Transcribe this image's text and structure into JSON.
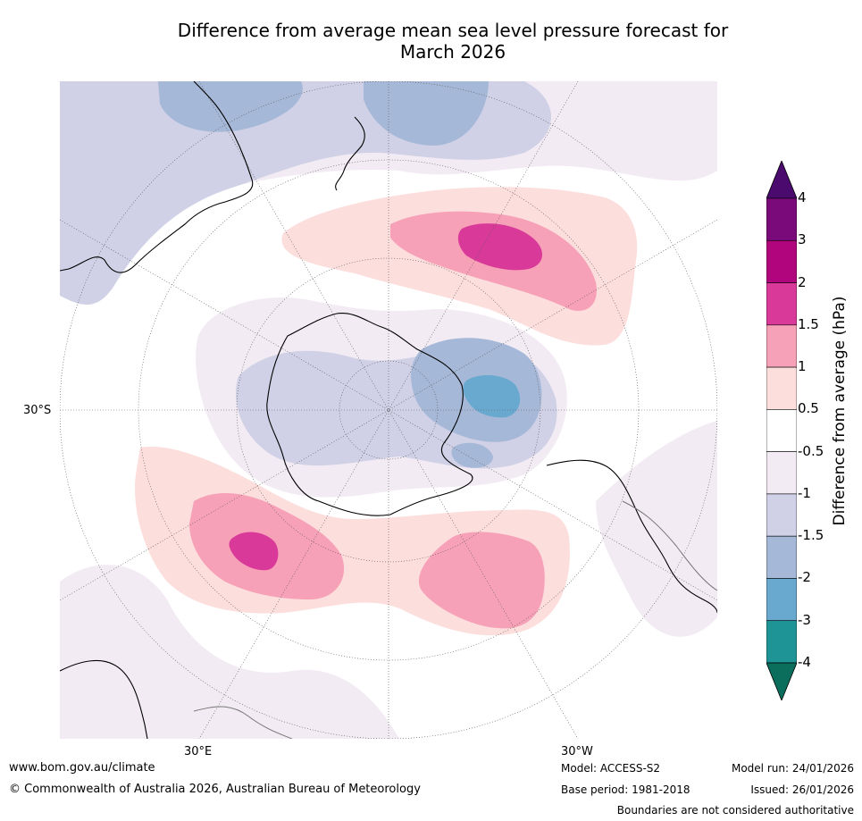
{
  "title": {
    "line1": "Difference from average mean sea level pressure forecast for",
    "line2": "March 2026"
  },
  "map": {
    "projection": "south-polar-stereographic",
    "lat_label": "30°S",
    "lon_labels": [
      "30°E",
      "30°W"
    ],
    "regions": [
      {
        "name": "high-pressure-anomaly-south-pacific",
        "max_value": 2
      },
      {
        "name": "high-pressure-anomaly-indian-ocean",
        "max_value": 2
      },
      {
        "name": "high-pressure-anomaly-south-atlantic",
        "max_value": 1.5
      },
      {
        "name": "low-pressure-anomaly-west-antarctica",
        "min_value": -3
      },
      {
        "name": "low-pressure-anomaly-tasman",
        "min_value": -1.5
      }
    ]
  },
  "colorbar": {
    "title": "Difference from average (hPa)",
    "ticks": [
      "4",
      "3",
      "2",
      "1.5",
      "1",
      "0.5",
      "-0.5",
      "-1",
      "-1.5",
      "-2",
      "-3",
      "-4"
    ],
    "colors": [
      "#4a0a6e",
      "#7a0a7a",
      "#b0057c",
      "#d93a9a",
      "#f7a1b8",
      "#fcdedd",
      "#ffffff",
      "#f2ebf3",
      "#d0d1e6",
      "#a6b8d8",
      "#6aa9cf",
      "#1f9496",
      "#0b6e5c"
    ]
  },
  "footer": {
    "website": "www.bom.gov.au/climate",
    "copyright": "© Commonwealth of Australia 2026, Australian Bureau of Meteorology",
    "model": "Model: ACCESS-S2",
    "base_period": "Base period: 1981-2018",
    "model_run": "Model run: 24/01/2026",
    "issued": "Issued: 26/01/2026",
    "disclaimer": "Boundaries are not considered authoritative"
  }
}
